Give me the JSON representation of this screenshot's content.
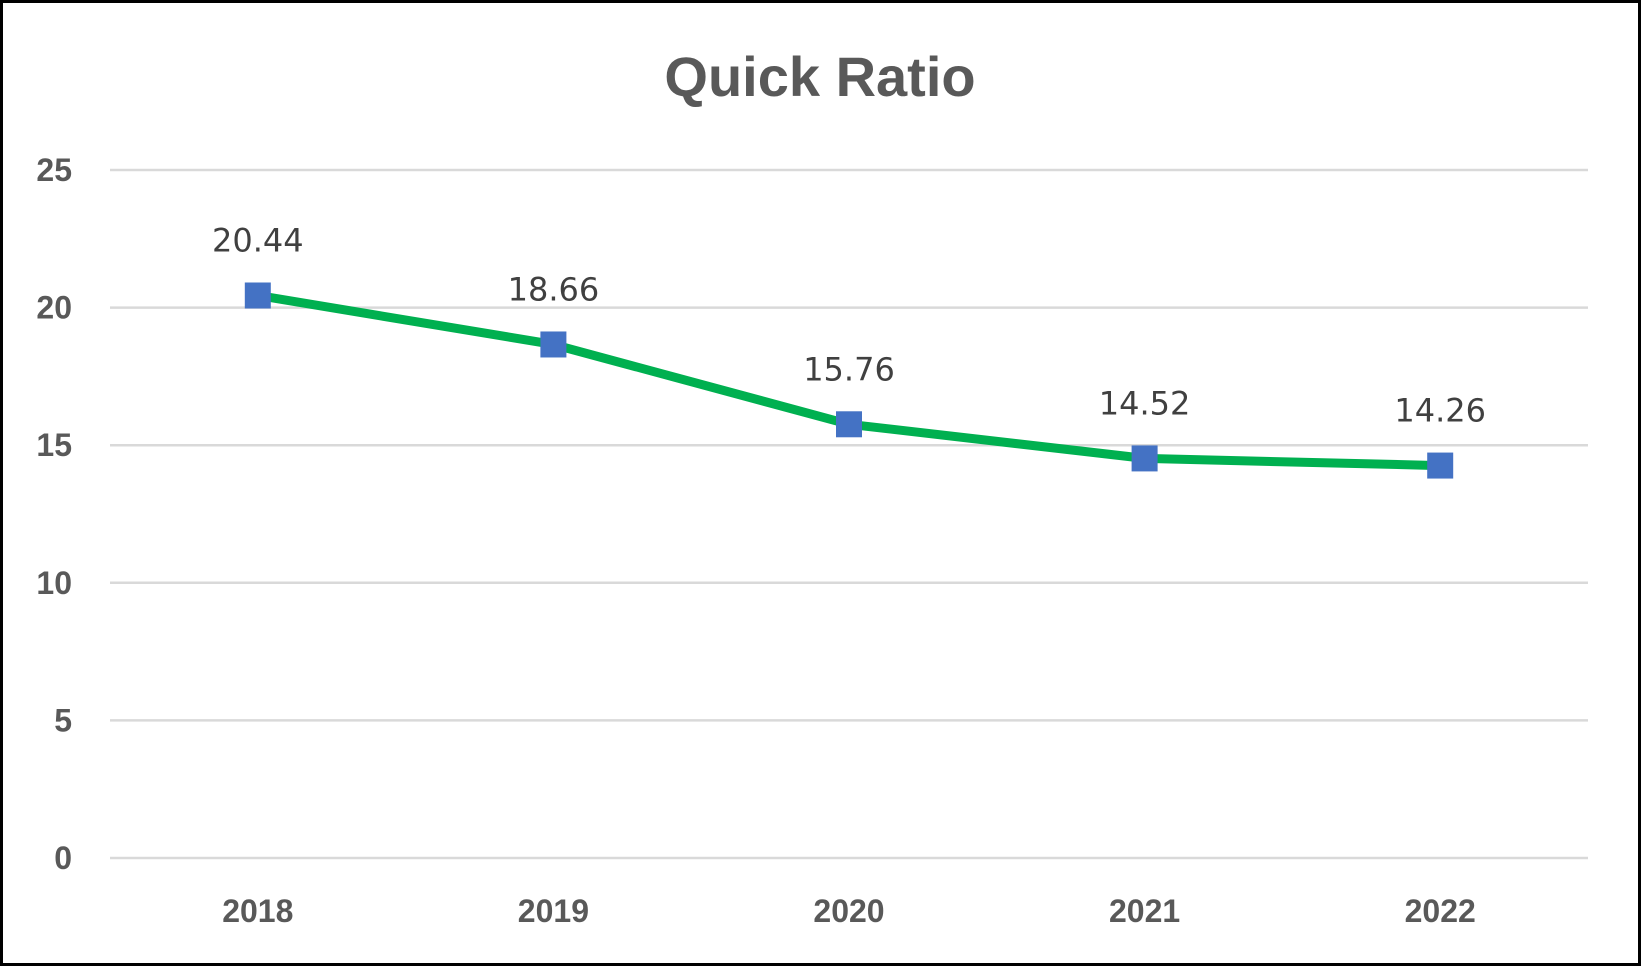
{
  "chart_data": {
    "type": "line",
    "title": "Quick Ratio",
    "xlabel": "",
    "ylabel": "",
    "categories": [
      "2018",
      "2019",
      "2020",
      "2021",
      "2022"
    ],
    "series": [
      {
        "values": [
          20.44,
          18.66,
          15.76,
          14.52,
          14.26
        ],
        "data_labels": [
          "20.44",
          "18.66",
          "15.76",
          "14.52",
          "14.26"
        ],
        "line_color": "#00B050",
        "marker_color": "#4472C4",
        "marker": "square"
      }
    ],
    "ylim": [
      0,
      25
    ],
    "yticks": [
      0,
      5,
      10,
      15,
      20,
      25
    ],
    "ytick_labels": [
      "0",
      "5",
      "10",
      "15",
      "20",
      "25"
    ],
    "grid": true,
    "gridline_color": "#D9D9D9",
    "legend": "none"
  }
}
